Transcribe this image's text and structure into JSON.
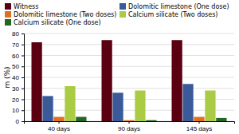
{
  "chart_data": {
    "type": "bar",
    "categories": [
      "40 days",
      "90 days",
      "145 days"
    ],
    "series": [
      {
        "name": "Witness",
        "color": "#5a0010",
        "values": [
          72,
          74,
          74
        ]
      },
      {
        "name": "Dolomitic limestone (One dose)",
        "color": "#3a5a9a",
        "values": [
          23,
          26,
          34
        ]
      },
      {
        "name": "Dolomitic limestone (Two doses)",
        "color": "#e07020",
        "values": [
          4,
          1,
          4
        ]
      },
      {
        "name": "Calcium silicate (Two doses)",
        "color": "#aacc44",
        "values": [
          32,
          28,
          28
        ]
      },
      {
        "name": "Calcium silicate (One dose)",
        "color": "#226622",
        "values": [
          4,
          1,
          3
        ]
      }
    ],
    "y_label": "m (%)",
    "ylim": [
      0,
      80
    ],
    "yticks": [
      0,
      10,
      20,
      30,
      40,
      50,
      60,
      70,
      80
    ],
    "grid": true,
    "legend": "top"
  }
}
